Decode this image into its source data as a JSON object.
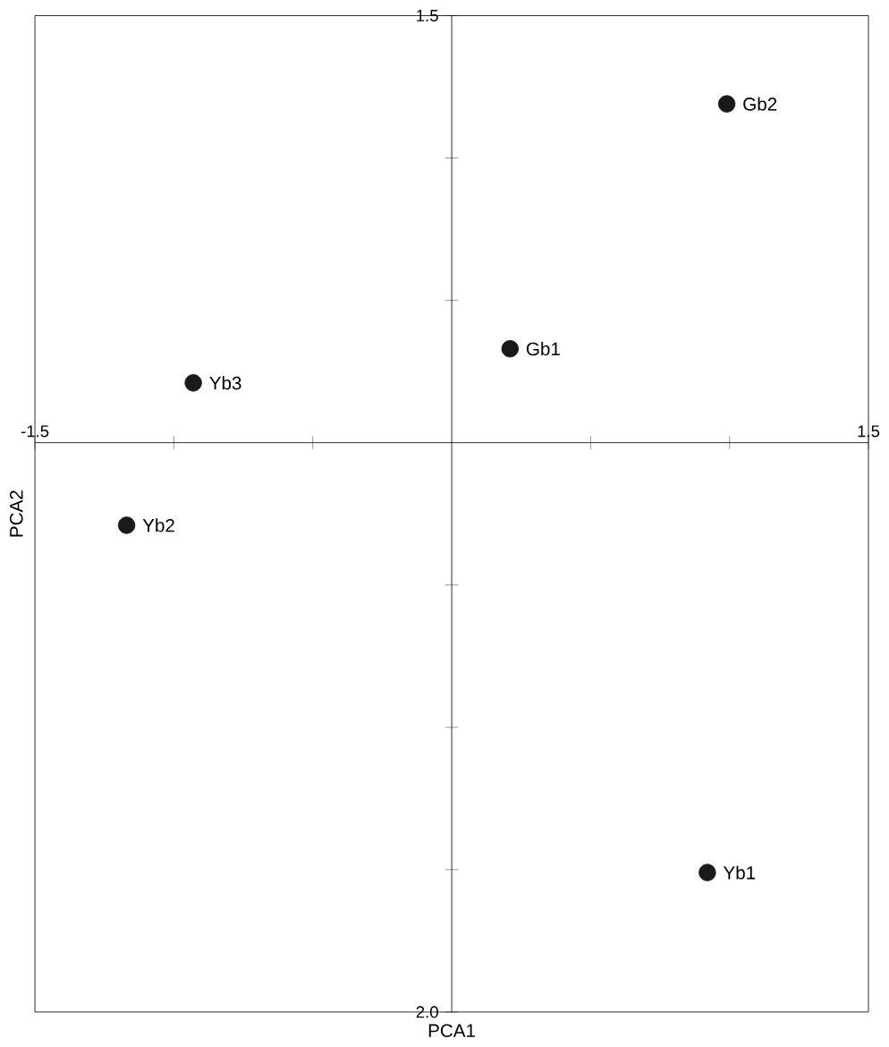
{
  "chart_data": {
    "type": "scatter",
    "xlabel": "PCA1",
    "ylabel": "PCA2",
    "x": [
      0.99,
      0.21,
      -0.93,
      -1.17,
      0.92
    ],
    "values": [
      1.19,
      0.33,
      0.21,
      -0.29,
      -1.51
    ],
    "color": "#1a1a1a",
    "xlim": [
      -1.5,
      1.5
    ],
    "ylim": [
      -2.0,
      1.5
    ],
    "xticks": [
      -1.5,
      {
        "value": -1,
        "label": null
      },
      {
        "value": -0.5,
        "label": null
      },
      {
        "value": 0.5,
        "label": null
      },
      {
        "value": 1,
        "label": null
      },
      1.5
    ],
    "yticks": [
      {
        "value": -2,
        "label": "2.0"
      },
      {
        "value": -1.5,
        "label": null
      },
      {
        "value": -1,
        "label": null
      },
      {
        "value": -0.5,
        "label": null
      },
      {
        "value": 0.5,
        "label": null
      },
      {
        "value": 1,
        "label": null
      },
      1.5
    ],
    "annotations": [
      {
        "text": "Gb2",
        "x": 0.99,
        "y": 1.19
      },
      {
        "text": "Gb1",
        "x": 0.21,
        "y": 0.33
      },
      {
        "text": "Yb3",
        "x": -0.93,
        "y": 0.21
      },
      {
        "text": "Yb2",
        "x": -1.17,
        "y": -0.29
      },
      {
        "text": "Yb1",
        "x": 0.92,
        "y": -1.51
      }
    ],
    "grid": false
  }
}
